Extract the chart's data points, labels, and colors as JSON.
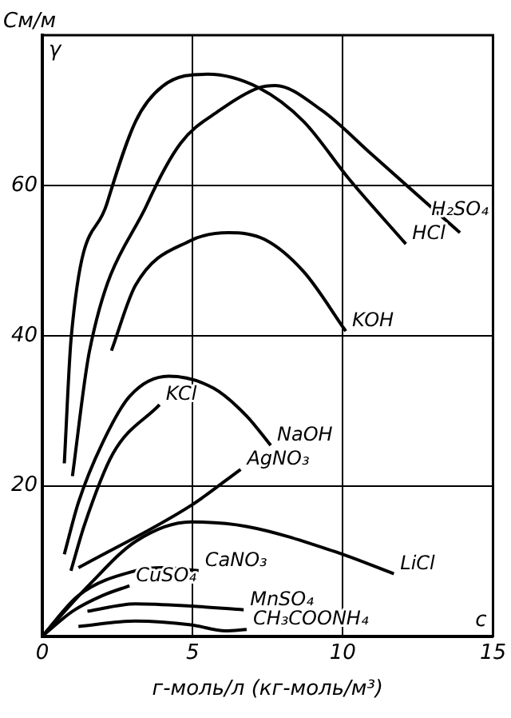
{
  "chart_data": {
    "type": "line",
    "ylabel": "См/м",
    "xlabel": "г-моль/л (кг-моль/м³)",
    "annotations": [
      "γ",
      "c"
    ],
    "xlim": [
      0,
      15
    ],
    "xticks": [
      0,
      5,
      10,
      15
    ],
    "ylim": [
      0,
      80
    ],
    "yticks": [
      {
        "value": 0,
        "label": null
      },
      20,
      40,
      60
    ],
    "grid": true,
    "legend": false,
    "marker": "none",
    "line_style": "solid",
    "series": [
      {
        "name": "H₂SO₄",
        "color": "#000000",
        "x": [
          1.0,
          1.57,
          3.5,
          4.6,
          5.9,
          7.2,
          7.75,
          9.3,
          11,
          13.9
        ],
        "values": [
          21.3,
          38,
          57.6,
          65.6,
          70,
          73,
          73.3,
          70,
          64,
          53.7
        ]
      },
      {
        "name": "HCl",
        "color": "#000000",
        "x": [
          0.73,
          0.96,
          2.15,
          3.1,
          4.0,
          5.5,
          7.2,
          8.7,
          10.2,
          12.1
        ],
        "values": [
          23,
          39.8,
          57.6,
          68.5,
          73.2,
          74.8,
          73,
          68.5,
          60.9,
          52.2
        ]
      },
      {
        "name": "KOH",
        "color": "#000000",
        "x": [
          2.3,
          3.1,
          4.9,
          6.2,
          7.4,
          8.7,
          10.1
        ],
        "values": [
          38,
          46.7,
          52.6,
          53.7,
          52.8,
          48.5,
          40.6
        ]
      },
      {
        "name": "NaOH",
        "color": "#000000",
        "x": [
          0.73,
          1.2,
          2,
          2.9,
          4.2,
          5.7,
          6.8,
          7.6
        ],
        "values": [
          10.9,
          17.8,
          25.7,
          31.9,
          34.6,
          33,
          29.3,
          25.4
        ]
      },
      {
        "name": "KCl",
        "color": "#000000",
        "x": [
          0.95,
          1.4,
          2.35,
          3.9
        ],
        "values": [
          8.7,
          14.8,
          24.3,
          30.8
        ]
      },
      {
        "name": "AgNO₃",
        "color": "#000000",
        "x": [
          1.2,
          4.95,
          6.6
        ],
        "values": [
          9.1,
          17.4,
          22.2
        ]
      },
      {
        "name": "LiCl",
        "color": "#000000",
        "x": [
          0,
          1.6,
          3.1,
          4.95,
          6.8,
          9.7,
          11.7
        ],
        "values": [
          0,
          7,
          12.6,
          15.2,
          14.6,
          11.3,
          8.3
        ]
      },
      {
        "name": "CaNO₃",
        "color": "#000000",
        "x": [
          0,
          1.2,
          3.1,
          4,
          5.2
        ],
        "values": [
          0,
          5.4,
          8.7,
          9.1,
          8.7
        ]
      },
      {
        "name": "CuSO₄",
        "color": "#000000",
        "x": [
          0,
          1.0,
          2.0,
          2.9
        ],
        "values": [
          0,
          3.3,
          5.4,
          6.7
        ]
      },
      {
        "name": "MnSO₄",
        "color": "#000000",
        "x": [
          1.5,
          3.1,
          4.95,
          6.7
        ],
        "values": [
          3.3,
          4.3,
          4,
          3.5
        ]
      },
      {
        "name": "CH₃COONH₄",
        "color": "#000000",
        "x": [
          1.2,
          3.1,
          4.95,
          6.1,
          6.8
        ],
        "values": [
          1.3,
          2,
          1.5,
          0.7,
          0.9
        ]
      }
    ]
  }
}
